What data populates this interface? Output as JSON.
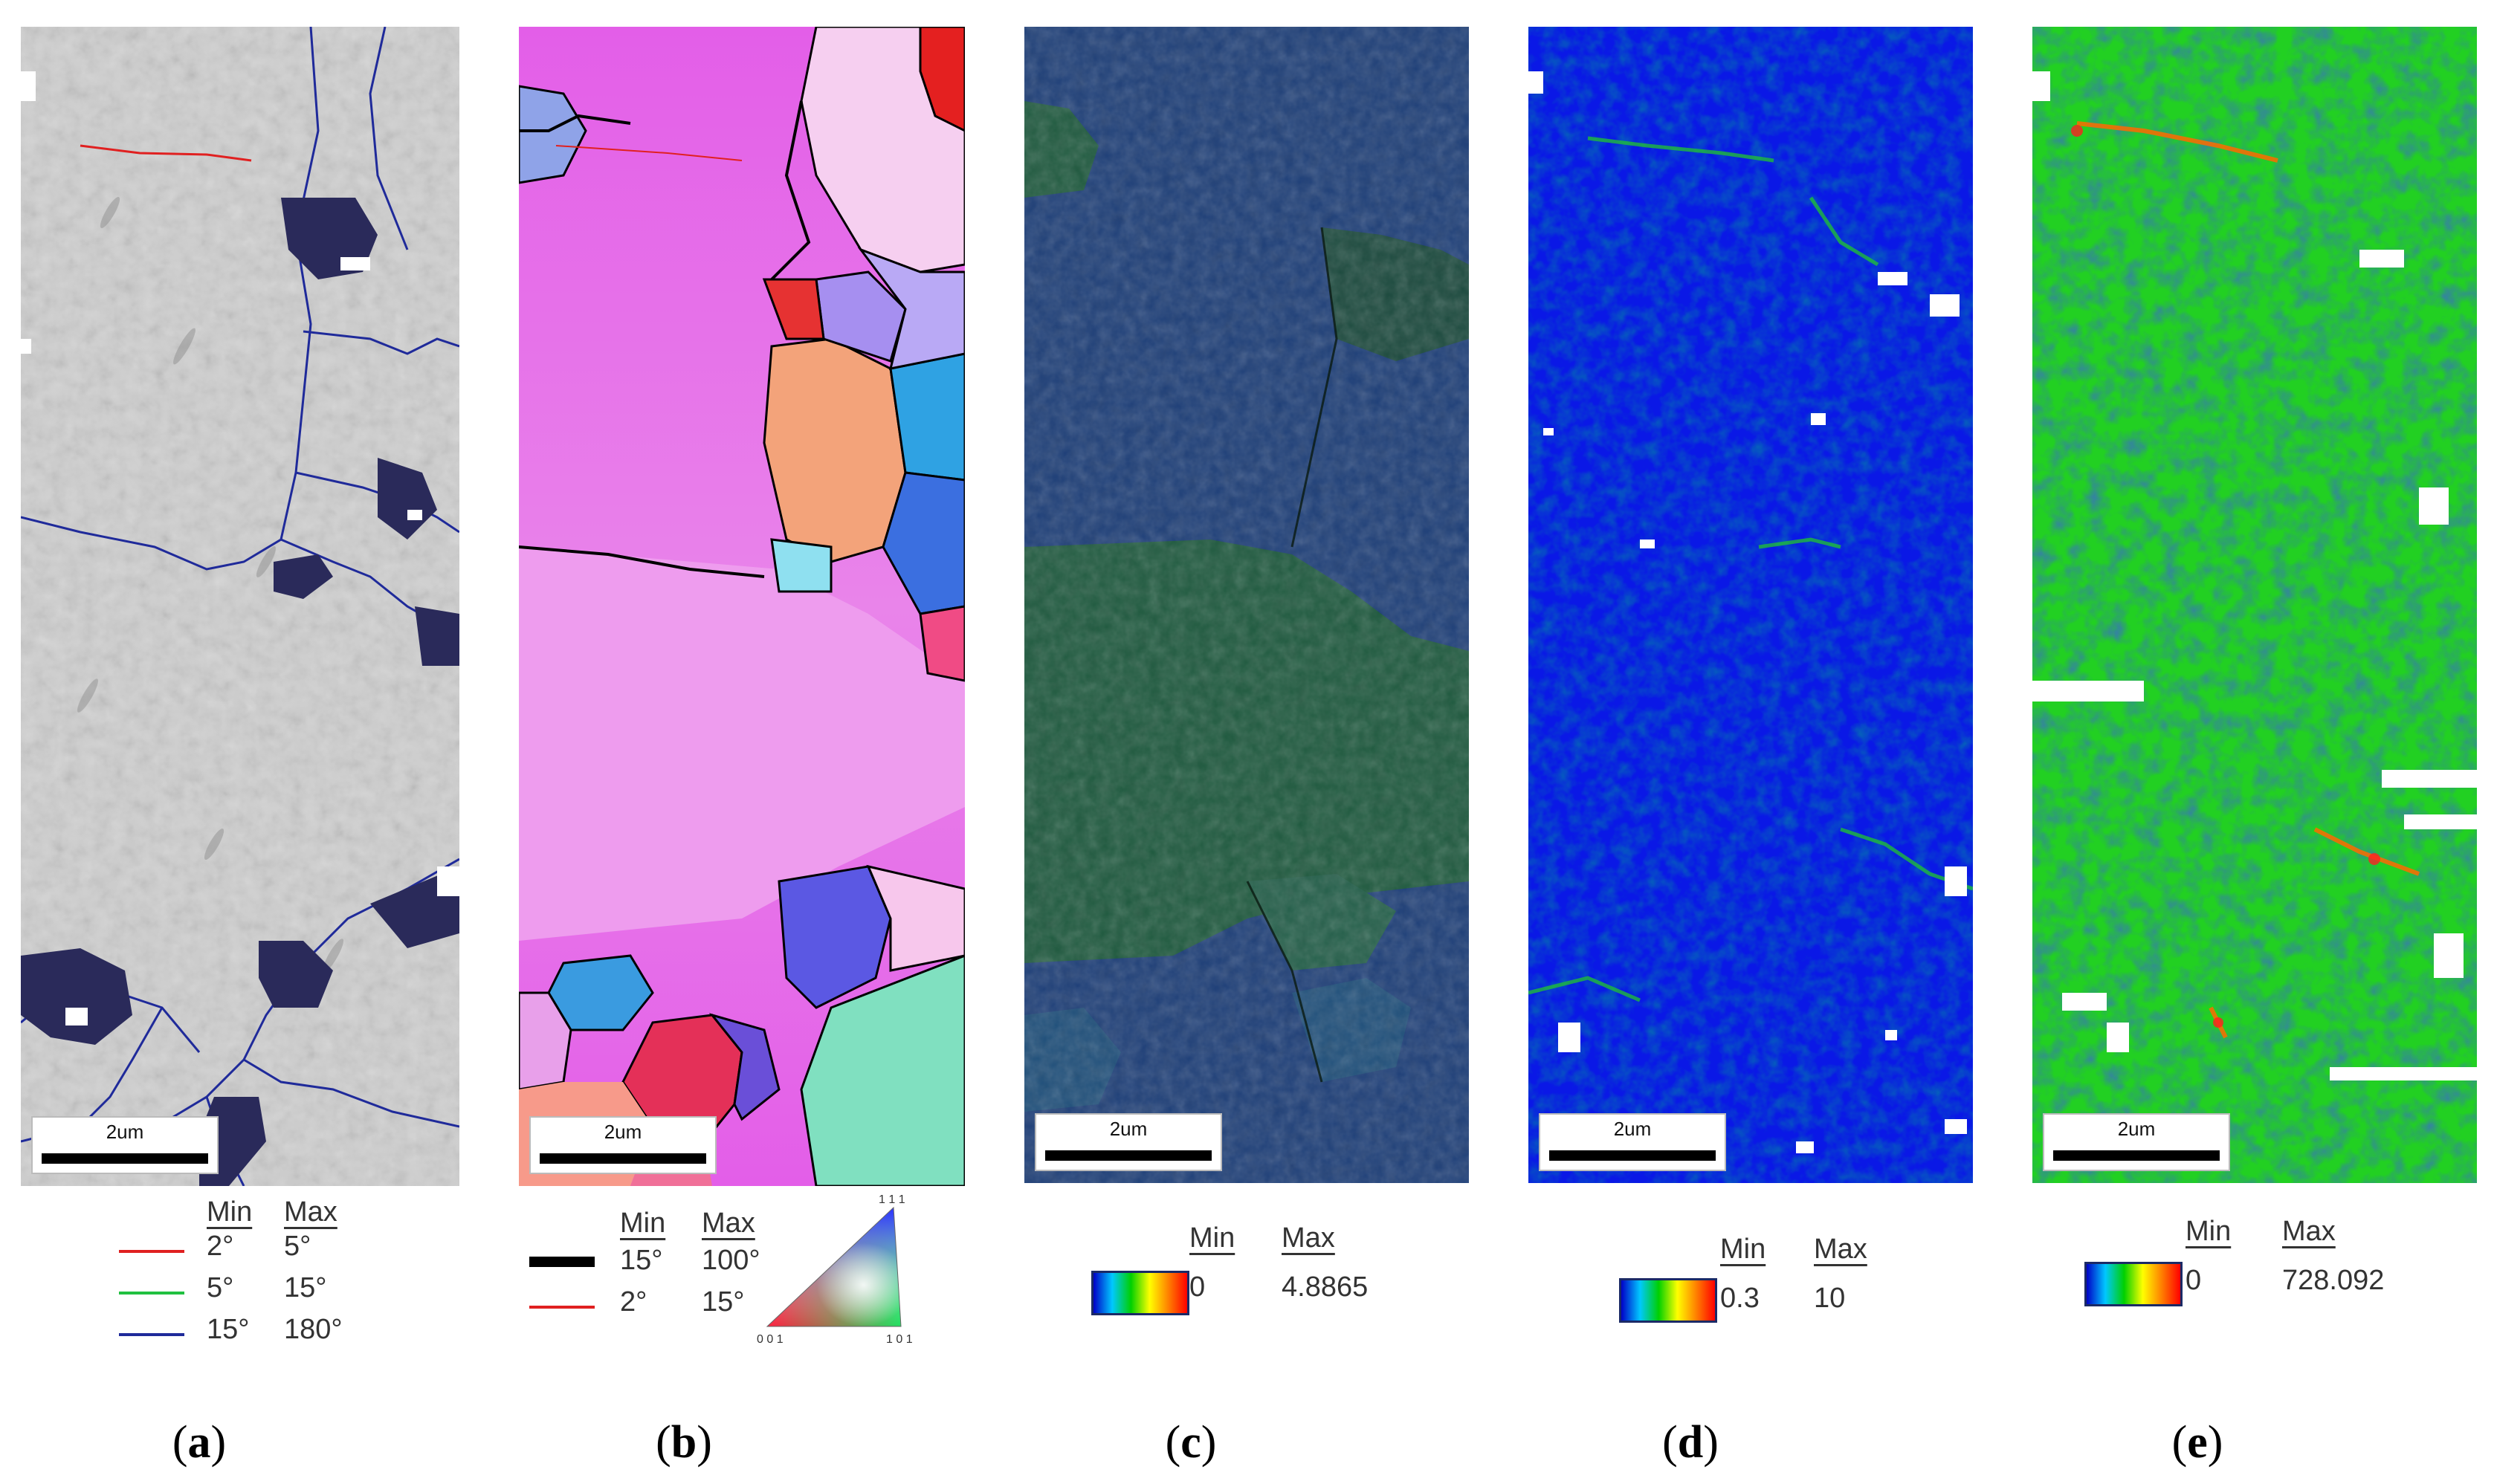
{
  "panels": [
    {
      "id": "a",
      "caption": "a",
      "scale_label": "2um"
    },
    {
      "id": "b",
      "caption": "b",
      "scale_label": "2um"
    },
    {
      "id": "c",
      "caption": "c",
      "scale_label": "2um"
    },
    {
      "id": "d",
      "caption": "d",
      "scale_label": "2um"
    },
    {
      "id": "e",
      "caption": "e",
      "scale_label": "2um"
    }
  ],
  "legend_a": {
    "min_header": "Min",
    "max_header": "Max",
    "rows": [
      {
        "color": "#e02020",
        "min": "2°",
        "max": "5°"
      },
      {
        "color": "#20c040",
        "min": "5°",
        "max": "15°"
      },
      {
        "color": "#1f2a9a",
        "min": "15°",
        "max": "180°"
      }
    ]
  },
  "legend_b": {
    "min_header": "Min",
    "max_header": "Max",
    "rows": [
      {
        "color": "#000000",
        "min": "15°",
        "max": "100°"
      },
      {
        "color": "#e02020",
        "min": "2°",
        "max": "15°"
      }
    ],
    "triangle_labels": {
      "top": "1 1 1",
      "left": "0 0 1",
      "right": "1 0 1"
    }
  },
  "legend_c": {
    "min_header": "Min",
    "max_header": "Max",
    "min": "0",
    "max": "4.8865"
  },
  "legend_d": {
    "min_header": "Min",
    "max_header": "Max",
    "min": "0.3",
    "max": "10"
  },
  "legend_e": {
    "min_header": "Min",
    "max_header": "Max",
    "min": "0",
    "max": "728.092"
  },
  "colors": {
    "ipf_magenta": "#e46be8",
    "kam_blue": "#0a18e6",
    "kam_green": "#22d022",
    "band_blue": "#1e3f78",
    "band_green": "#1f5a3f",
    "boundary_blue": "#1f2a9a"
  }
}
